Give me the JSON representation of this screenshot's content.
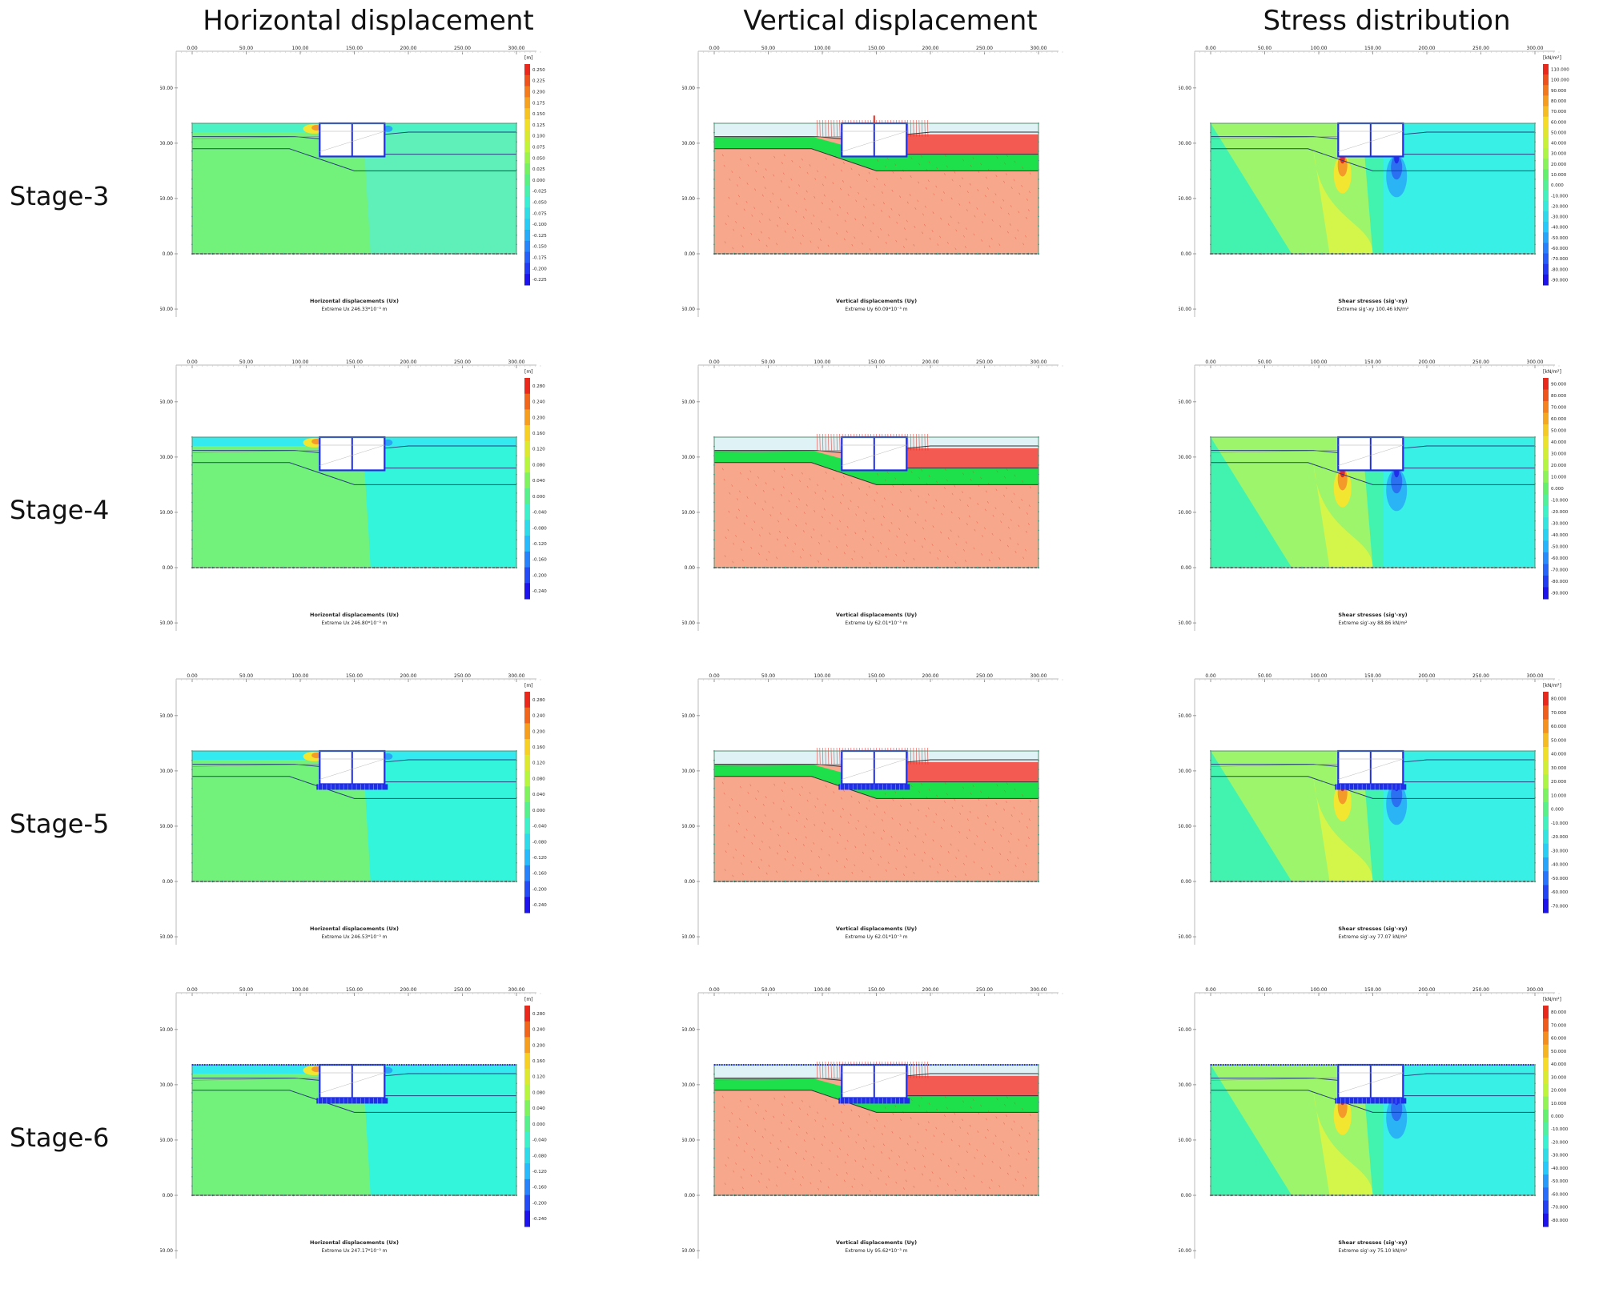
{
  "columns": [
    "Horizontal displacement",
    "Vertical displacement",
    "Stress distribution"
  ],
  "x_axis_ticks": [
    "0.00",
    "50.00",
    "100.00",
    "150.00",
    "200.00",
    "250.00",
    "300.00"
  ],
  "y_axis_ticks": [
    "150.00",
    "100.00",
    "50.00",
    "0.00",
    "-50.00"
  ],
  "colors": {
    "soil_green": "#72f27b",
    "soil_cyan": "#3af2d6",
    "soil_cyan_light": "#52f4c8",
    "salmon": "#f7a88c",
    "green_band": "#1ee04a",
    "red_band": "#f25a52",
    "sea": "#dff2f6",
    "box": "#1f2ee8",
    "red": "#e8291c"
  },
  "stages": [
    {
      "label": "Stage-3",
      "horizontal": {
        "legend_unit": "[m]",
        "legend_ticks": [
          "0.250",
          "0.225",
          "0.200",
          "0.175",
          "0.150",
          "0.125",
          "0.100",
          "0.075",
          "0.050",
          "0.025",
          "0.000",
          "-0.025",
          "-0.050",
          "-0.075",
          "-0.100",
          "-0.125",
          "-0.150",
          "-0.175",
          "-0.200",
          "-0.225"
        ],
        "caption_title": "Horizontal displacements (Ux)",
        "caption_extreme": "Extreme Ux 246.33*10⁻³ m"
      },
      "vertical": {
        "caption_title": "Vertical displacements (Uy)",
        "caption_extreme": "Extreme Uy 60.09*10⁻³ m"
      },
      "stress": {
        "legend_unit": "[kN/m²]",
        "legend_ticks": [
          "110.000",
          "100.000",
          "90.000",
          "80.000",
          "70.000",
          "60.000",
          "50.000",
          "40.000",
          "30.000",
          "20.000",
          "10.000",
          "0.000",
          "-10.000",
          "-20.000",
          "-30.000",
          "-40.000",
          "-50.000",
          "-60.000",
          "-70.000",
          "-80.000",
          "-90.000"
        ],
        "caption_title": "Shear stresses (sig'-xy)",
        "caption_extreme": "Extreme sig'-xy 100.46 kN/m²"
      }
    },
    {
      "label": "Stage-4",
      "horizontal": {
        "legend_unit": "[m]",
        "legend_ticks": [
          "0.280",
          "0.240",
          "0.200",
          "0.160",
          "0.120",
          "0.080",
          "0.040",
          "0.000",
          "-0.040",
          "-0.080",
          "-0.120",
          "-0.160",
          "-0.200",
          "-0.240"
        ],
        "caption_title": "Horizontal displacements (Ux)",
        "caption_extreme": "Extreme Ux 246.80*10⁻³ m"
      },
      "vertical": {
        "caption_title": "Vertical displacements (Uy)",
        "caption_extreme": "Extreme Uy 62.01*10⁻³ m"
      },
      "stress": {
        "legend_unit": "[kN/m²]",
        "legend_ticks": [
          "90.000",
          "80.000",
          "70.000",
          "60.000",
          "50.000",
          "40.000",
          "30.000",
          "20.000",
          "10.000",
          "0.000",
          "-10.000",
          "-20.000",
          "-30.000",
          "-40.000",
          "-50.000",
          "-60.000",
          "-70.000",
          "-80.000",
          "-90.000"
        ],
        "caption_title": "Shear stresses (sig'-xy)",
        "caption_extreme": "Extreme sig'-xy 88.86 kN/m²"
      }
    },
    {
      "label": "Stage-5",
      "horizontal": {
        "legend_unit": "[m]",
        "legend_ticks": [
          "0.280",
          "0.240",
          "0.200",
          "0.160",
          "0.120",
          "0.080",
          "0.040",
          "0.000",
          "-0.040",
          "-0.080",
          "-0.120",
          "-0.160",
          "-0.200",
          "-0.240"
        ],
        "caption_title": "Horizontal displacements (Ux)",
        "caption_extreme": "Extreme Ux 246.53*10⁻³ m"
      },
      "vertical": {
        "caption_title": "Vertical displacements (Uy)",
        "caption_extreme": "Extreme Uy 62.01*10⁻³ m"
      },
      "stress": {
        "legend_unit": "[kN/m²]",
        "legend_ticks": [
          "80.000",
          "70.000",
          "60.000",
          "50.000",
          "40.000",
          "30.000",
          "20.000",
          "10.000",
          "0.000",
          "-10.000",
          "-20.000",
          "-30.000",
          "-40.000",
          "-50.000",
          "-60.000",
          "-70.000"
        ],
        "caption_title": "Shear stresses (sig'-xy)",
        "caption_extreme": "Extreme sig'-xy 77.07 kN/m²"
      }
    },
    {
      "label": "Stage-6",
      "horizontal": {
        "legend_unit": "[m]",
        "legend_ticks": [
          "0.280",
          "0.240",
          "0.200",
          "0.160",
          "0.120",
          "0.080",
          "0.040",
          "0.000",
          "-0.040",
          "-0.080",
          "-0.120",
          "-0.160",
          "-0.200",
          "-0.240"
        ],
        "caption_title": "Horizontal displacements (Ux)",
        "caption_extreme": "Extreme Ux 247.17*10⁻³ m"
      },
      "vertical": {
        "caption_title": "Vertical displacements (Uy)",
        "caption_extreme": "Extreme Uy 95.62*10⁻³ m"
      },
      "stress": {
        "legend_unit": "[kN/m²]",
        "legend_ticks": [
          "80.000",
          "70.000",
          "60.000",
          "50.000",
          "40.000",
          "30.000",
          "20.000",
          "10.000",
          "0.000",
          "-10.000",
          "-20.000",
          "-30.000",
          "-40.000",
          "-50.000",
          "-60.000",
          "-70.000",
          "-80.000"
        ],
        "caption_title": "Shear stresses (sig'-xy)",
        "caption_extreme": "Extreme sig'-xy 75.10 kN/m²"
      }
    }
  ]
}
